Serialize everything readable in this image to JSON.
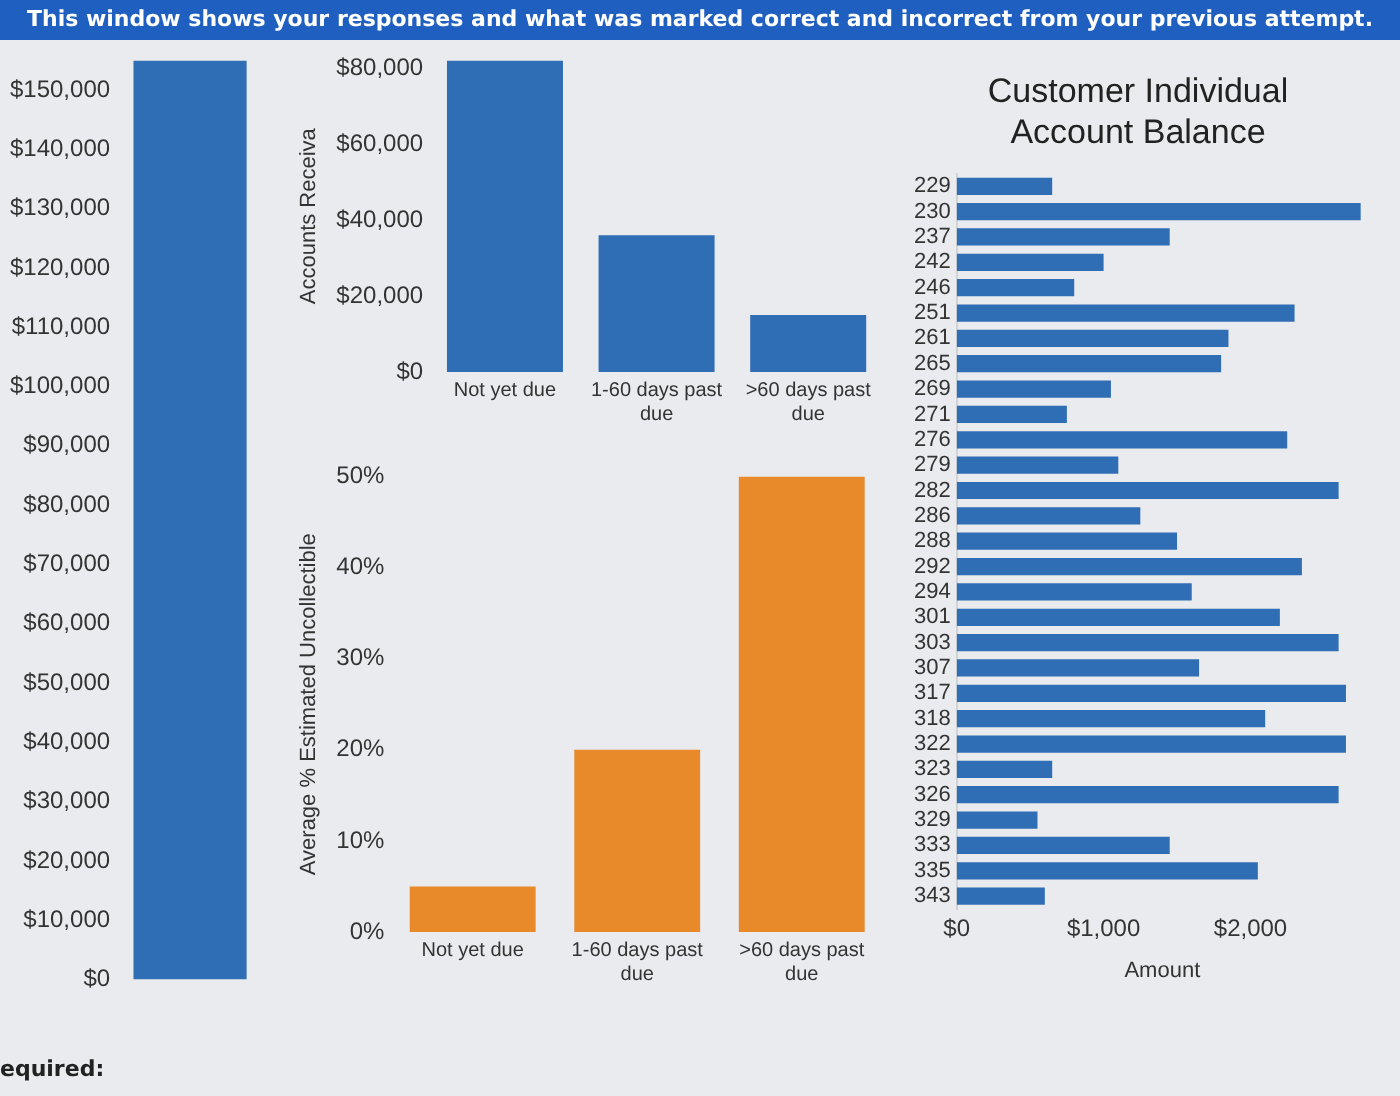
{
  "chart_data": [
    {
      "type": "bar",
      "categories": [
        null
      ],
      "values": [
        155000
      ],
      "color": "#2f6db5",
      "ylim": [
        0,
        155000
      ],
      "yticks": [
        {
          "value": 0,
          "label": "$0"
        },
        {
          "value": 10000,
          "label": "$10,000"
        },
        {
          "value": 20000,
          "label": "$20,000"
        },
        {
          "value": 30000,
          "label": "$30,000"
        },
        {
          "value": 40000,
          "label": "$40,000"
        },
        {
          "value": 50000,
          "label": "$50,000"
        },
        {
          "value": 60000,
          "label": "$60,000"
        },
        {
          "value": 70000,
          "label": "$70,000"
        },
        {
          "value": 80000,
          "label": "$80,000"
        },
        {
          "value": 90000,
          "label": "$90,000"
        },
        {
          "value": 100000,
          "label": "$100,000"
        },
        {
          "value": 110000,
          "label": "$110,000"
        },
        {
          "value": 120000,
          "label": "$120,000"
        },
        {
          "value": 130000,
          "label": "$130,000"
        },
        {
          "value": 140000,
          "label": "$140,000"
        },
        {
          "value": 150000,
          "label": "$150,000"
        }
      ],
      "tick_labels": "y",
      "annotations": [
        "This window shows your responses and what was marked correct and incorrect from your previous attempt.",
        "equired:"
      ]
    },
    {
      "type": "bar",
      "ylabel": "Accounts Receiva",
      "categories": [
        "Not yet due",
        "1-60 days past due",
        ">60 days past due"
      ],
      "values": [
        82000,
        36000,
        15000
      ],
      "color": "#2f6db5",
      "ylim": [
        0,
        82000
      ],
      "yticks": [
        {
          "value": 0,
          "label": "$0"
        },
        {
          "value": 20000,
          "label": "$20,000"
        },
        {
          "value": 40000,
          "label": "$40,000"
        },
        {
          "value": 60000,
          "label": "$60,000"
        },
        {
          "value": 80000,
          "label": "$80,000"
        }
      ]
    },
    {
      "type": "bar",
      "ylabel": "Average % Estimated Uncollectible",
      "categories": [
        "Not yet due",
        "1-60 days past due",
        ">60 days past due"
      ],
      "values": [
        5,
        20,
        50
      ],
      "color": "#e8892a",
      "ylim": [
        0,
        50
      ],
      "yticks": [
        {
          "value": 0,
          "label": "0%"
        },
        {
          "value": 10,
          "label": "10%"
        },
        {
          "value": 20,
          "label": "20%"
        },
        {
          "value": 30,
          "label": "30%"
        },
        {
          "value": 40,
          "label": "40%"
        },
        {
          "value": 50,
          "label": "50%"
        }
      ]
    },
    {
      "type": "bar",
      "orientation": "horizontal",
      "title": "Customer Individual Account Balance",
      "xlabel": "Amount",
      "categories": [
        "229",
        "230",
        "237",
        "242",
        "246",
        "251",
        "261",
        "265",
        "269",
        "271",
        "276",
        "279",
        "282",
        "286",
        "288",
        "292",
        "294",
        "301",
        "303",
        "307",
        "317",
        "318",
        "322",
        "323",
        "326",
        "329",
        "333",
        "335",
        "343"
      ],
      "values": [
        650,
        2750,
        1450,
        1000,
        800,
        2300,
        1850,
        1800,
        1050,
        750,
        2250,
        1100,
        2600,
        1250,
        1500,
        2350,
        1600,
        2200,
        2600,
        1650,
        2650,
        2100,
        2650,
        650,
        2600,
        550,
        1450,
        2050,
        600
      ],
      "color": "#2f6db5",
      "xlim": [
        0,
        2800
      ],
      "xticks": [
        {
          "value": 0,
          "label": "$0"
        },
        {
          "value": 1000,
          "label": "$1,000"
        },
        {
          "value": 2000,
          "label": "$2,000"
        }
      ]
    }
  ]
}
